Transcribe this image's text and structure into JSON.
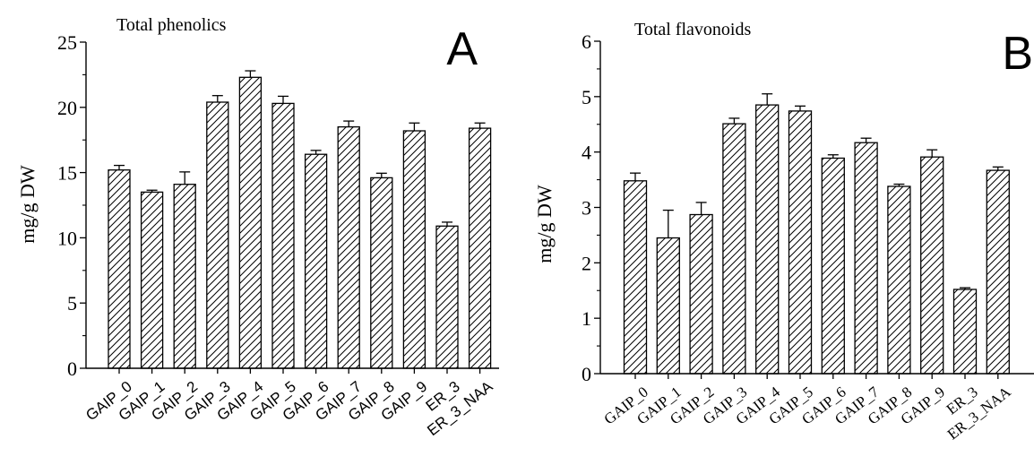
{
  "charts": [
    {
      "type": "bar",
      "panel_letter": "A",
      "title": "Total phenolics",
      "ylabel": "mg/g DW",
      "xlabel": "",
      "ylim": [
        0,
        25
      ],
      "yticks": [
        0,
        5,
        10,
        15,
        20,
        25
      ],
      "categories": [
        "GAIP_0",
        "GAIP_1",
        "GAIP_2",
        "GAIP_3",
        "GAIP_4",
        "GAIP_5",
        "GAIP_6",
        "GAIP_7",
        "GAIP_8",
        "GAIP_9",
        "ER_3",
        "ER_3_NAA"
      ],
      "values": [
        15.2,
        13.5,
        14.1,
        20.4,
        22.3,
        20.3,
        16.4,
        18.5,
        14.6,
        18.2,
        10.9,
        18.4
      ],
      "errors": [
        0.35,
        0.15,
        0.95,
        0.5,
        0.5,
        0.55,
        0.3,
        0.45,
        0.35,
        0.6,
        0.3,
        0.4
      ],
      "grid": false,
      "fill": "hatched"
    },
    {
      "type": "bar",
      "panel_letter": "B",
      "title": "Total flavonoids",
      "ylabel": "mg/g DW",
      "xlabel": "",
      "ylim": [
        0,
        6
      ],
      "yticks": [
        0,
        1,
        2,
        3,
        4,
        5,
        6
      ],
      "categories": [
        "GAIP_0",
        "GAIP_1",
        "GAIP_2",
        "GAIP_3",
        "GAIP_4",
        "GAIP_5",
        "GAIP_6",
        "GAIP_7",
        "GAIP_8",
        "GAIP_9",
        "ER_3",
        "ER_3_NAA"
      ],
      "values": [
        3.48,
        2.45,
        2.87,
        4.51,
        4.85,
        4.74,
        3.89,
        4.17,
        3.38,
        3.91,
        1.52,
        3.67
      ],
      "errors": [
        0.14,
        0.5,
        0.22,
        0.1,
        0.2,
        0.09,
        0.06,
        0.08,
        0.04,
        0.13,
        0.03,
        0.06
      ],
      "grid": false,
      "fill": "hatched"
    }
  ]
}
